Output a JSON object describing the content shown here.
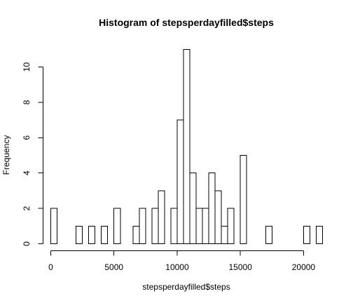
{
  "chart_data": {
    "type": "bar",
    "title": "Histogram of stepsperdayfilled$steps",
    "xlabel": "stepsperdayfilled$steps",
    "ylabel": "Frequency",
    "bin_width": 500,
    "bins_start": [
      0,
      500,
      1000,
      1500,
      2000,
      2500,
      3000,
      3500,
      4000,
      4500,
      5000,
      5500,
      6000,
      6500,
      7000,
      7500,
      8000,
      8500,
      9000,
      9500,
      10000,
      10500,
      11000,
      11500,
      12000,
      12500,
      13000,
      13500,
      14000,
      14500,
      15000,
      15500,
      16000,
      16500,
      17000,
      17500,
      18000,
      18500,
      19000,
      19500,
      20000,
      20500,
      21000
    ],
    "values": [
      2,
      0,
      0,
      0,
      1,
      0,
      1,
      0,
      1,
      0,
      2,
      0,
      0,
      1,
      2,
      0,
      2,
      3,
      0,
      2,
      7,
      11,
      4,
      2,
      2,
      4,
      3,
      1,
      2,
      0,
      5,
      0,
      0,
      0,
      1,
      0,
      0,
      0,
      0,
      0,
      1,
      0,
      1
    ],
    "xlim": [
      0,
      21500
    ],
    "ylim": [
      0,
      11
    ],
    "xticks": [
      0,
      5000,
      10000,
      15000,
      20000
    ],
    "yticks": [
      0,
      2,
      4,
      6,
      8,
      10
    ],
    "grid": false
  }
}
